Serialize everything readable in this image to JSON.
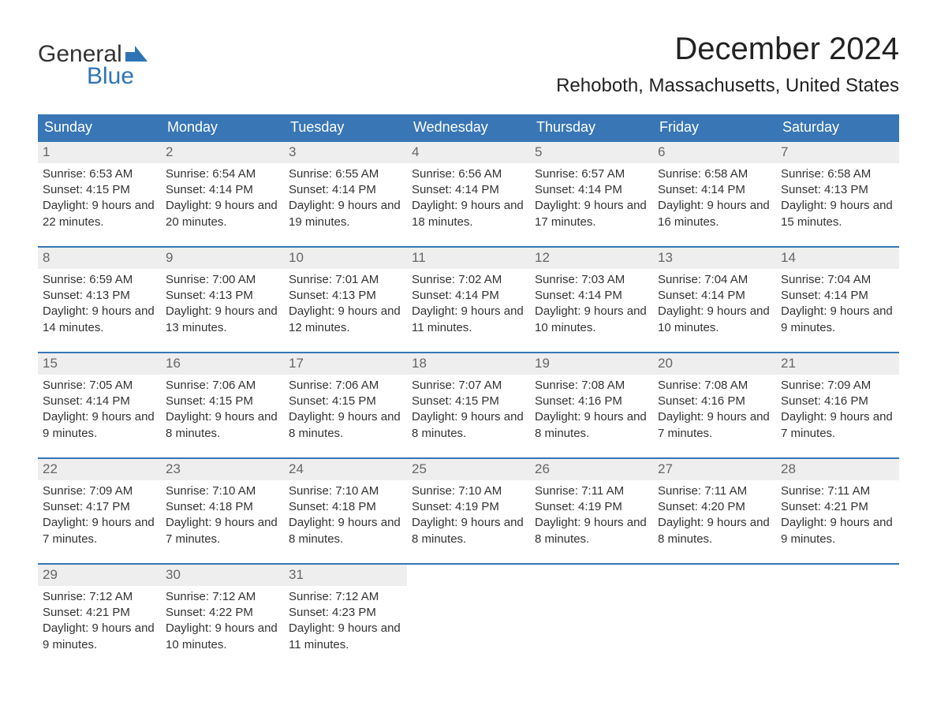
{
  "logo": {
    "text1": "General",
    "text2": "Blue",
    "flag_color": "#2e74b5"
  },
  "title": "December 2024",
  "location": "Rehoboth, Massachusetts, United States",
  "colors": {
    "header_bg": "#3876b5",
    "header_text": "#ffffff",
    "week_border": "#3876b5",
    "daynum_bg": "#eeeeee",
    "daynum_text": "#666666",
    "body_text": "#333333",
    "background": "#ffffff",
    "logo_blue": "#2e74b5"
  },
  "typography": {
    "title_fontsize": 40,
    "location_fontsize": 24,
    "header_fontsize": 18,
    "daynum_fontsize": 17,
    "body_fontsize": 15,
    "font_family": "Arial"
  },
  "day_headers": [
    "Sunday",
    "Monday",
    "Tuesday",
    "Wednesday",
    "Thursday",
    "Friday",
    "Saturday"
  ],
  "weeks": [
    [
      {
        "n": "1",
        "sunrise": "6:53 AM",
        "sunset": "4:15 PM",
        "daylight": "9 hours and 22 minutes."
      },
      {
        "n": "2",
        "sunrise": "6:54 AM",
        "sunset": "4:14 PM",
        "daylight": "9 hours and 20 minutes."
      },
      {
        "n": "3",
        "sunrise": "6:55 AM",
        "sunset": "4:14 PM",
        "daylight": "9 hours and 19 minutes."
      },
      {
        "n": "4",
        "sunrise": "6:56 AM",
        "sunset": "4:14 PM",
        "daylight": "9 hours and 18 minutes."
      },
      {
        "n": "5",
        "sunrise": "6:57 AM",
        "sunset": "4:14 PM",
        "daylight": "9 hours and 17 minutes."
      },
      {
        "n": "6",
        "sunrise": "6:58 AM",
        "sunset": "4:14 PM",
        "daylight": "9 hours and 16 minutes."
      },
      {
        "n": "7",
        "sunrise": "6:58 AM",
        "sunset": "4:13 PM",
        "daylight": "9 hours and 15 minutes."
      }
    ],
    [
      {
        "n": "8",
        "sunrise": "6:59 AM",
        "sunset": "4:13 PM",
        "daylight": "9 hours and 14 minutes."
      },
      {
        "n": "9",
        "sunrise": "7:00 AM",
        "sunset": "4:13 PM",
        "daylight": "9 hours and 13 minutes."
      },
      {
        "n": "10",
        "sunrise": "7:01 AM",
        "sunset": "4:13 PM",
        "daylight": "9 hours and 12 minutes."
      },
      {
        "n": "11",
        "sunrise": "7:02 AM",
        "sunset": "4:14 PM",
        "daylight": "9 hours and 11 minutes."
      },
      {
        "n": "12",
        "sunrise": "7:03 AM",
        "sunset": "4:14 PM",
        "daylight": "9 hours and 10 minutes."
      },
      {
        "n": "13",
        "sunrise": "7:04 AM",
        "sunset": "4:14 PM",
        "daylight": "9 hours and 10 minutes."
      },
      {
        "n": "14",
        "sunrise": "7:04 AM",
        "sunset": "4:14 PM",
        "daylight": "9 hours and 9 minutes."
      }
    ],
    [
      {
        "n": "15",
        "sunrise": "7:05 AM",
        "sunset": "4:14 PM",
        "daylight": "9 hours and 9 minutes."
      },
      {
        "n": "16",
        "sunrise": "7:06 AM",
        "sunset": "4:15 PM",
        "daylight": "9 hours and 8 minutes."
      },
      {
        "n": "17",
        "sunrise": "7:06 AM",
        "sunset": "4:15 PM",
        "daylight": "9 hours and 8 minutes."
      },
      {
        "n": "18",
        "sunrise": "7:07 AM",
        "sunset": "4:15 PM",
        "daylight": "9 hours and 8 minutes."
      },
      {
        "n": "19",
        "sunrise": "7:08 AM",
        "sunset": "4:16 PM",
        "daylight": "9 hours and 8 minutes."
      },
      {
        "n": "20",
        "sunrise": "7:08 AM",
        "sunset": "4:16 PM",
        "daylight": "9 hours and 7 minutes."
      },
      {
        "n": "21",
        "sunrise": "7:09 AM",
        "sunset": "4:16 PM",
        "daylight": "9 hours and 7 minutes."
      }
    ],
    [
      {
        "n": "22",
        "sunrise": "7:09 AM",
        "sunset": "4:17 PM",
        "daylight": "9 hours and 7 minutes."
      },
      {
        "n": "23",
        "sunrise": "7:10 AM",
        "sunset": "4:18 PM",
        "daylight": "9 hours and 7 minutes."
      },
      {
        "n": "24",
        "sunrise": "7:10 AM",
        "sunset": "4:18 PM",
        "daylight": "9 hours and 8 minutes."
      },
      {
        "n": "25",
        "sunrise": "7:10 AM",
        "sunset": "4:19 PM",
        "daylight": "9 hours and 8 minutes."
      },
      {
        "n": "26",
        "sunrise": "7:11 AM",
        "sunset": "4:19 PM",
        "daylight": "9 hours and 8 minutes."
      },
      {
        "n": "27",
        "sunrise": "7:11 AM",
        "sunset": "4:20 PM",
        "daylight": "9 hours and 8 minutes."
      },
      {
        "n": "28",
        "sunrise": "7:11 AM",
        "sunset": "4:21 PM",
        "daylight": "9 hours and 9 minutes."
      }
    ],
    [
      {
        "n": "29",
        "sunrise": "7:12 AM",
        "sunset": "4:21 PM",
        "daylight": "9 hours and 9 minutes."
      },
      {
        "n": "30",
        "sunrise": "7:12 AM",
        "sunset": "4:22 PM",
        "daylight": "9 hours and 10 minutes."
      },
      {
        "n": "31",
        "sunrise": "7:12 AM",
        "sunset": "4:23 PM",
        "daylight": "9 hours and 11 minutes."
      },
      {
        "empty": true
      },
      {
        "empty": true
      },
      {
        "empty": true
      },
      {
        "empty": true
      }
    ]
  ],
  "labels": {
    "sunrise": "Sunrise:",
    "sunset": "Sunset:",
    "daylight": "Daylight:"
  }
}
